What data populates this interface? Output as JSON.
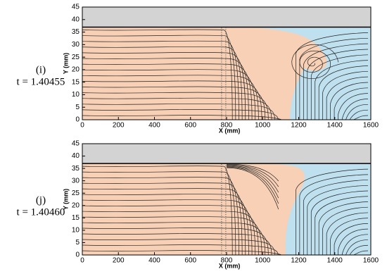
{
  "chart_data": [
    {
      "type": "streamline",
      "panel": "(i)",
      "time_label": "t = 1.40455",
      "x_label": "X (mm)",
      "y_label": "Y (mm)",
      "xlim": [
        0,
        1600
      ],
      "ylim": [
        0,
        45
      ],
      "xticks": [
        0,
        200,
        400,
        600,
        800,
        1000,
        1200,
        1400,
        1600
      ],
      "yticks": [
        0,
        5,
        10,
        15,
        20,
        25,
        30,
        35,
        40,
        45
      ]
    },
    {
      "type": "streamline",
      "panel": "(j)",
      "time_label": "t = 1.40460",
      "x_label": "X (mm)",
      "y_label": "Y (mm)",
      "xlim": [
        0,
        1600
      ],
      "ylim": [
        0,
        45
      ],
      "xticks": [
        0,
        200,
        400,
        600,
        800,
        1000,
        1200,
        1400,
        1600
      ],
      "yticks": [
        0,
        5,
        10,
        15,
        20,
        25,
        30,
        35,
        40,
        45
      ]
    }
  ]
}
